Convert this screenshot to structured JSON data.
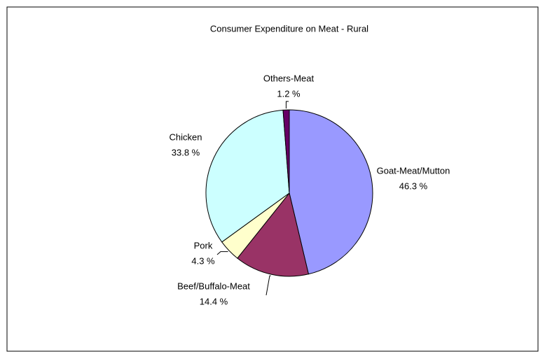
{
  "chart_data": {
    "type": "pie",
    "title": "Consumer Expenditure on Meat - Rural",
    "categories": [
      "Goat-Meat/Mutton",
      "Beef/Buffalo-Meat",
      "Pork",
      "Chicken",
      "Others-Meat"
    ],
    "values": [
      46.3,
      14.4,
      4.3,
      33.8,
      1.2
    ],
    "value_labels": [
      "46.3 %",
      "14.4 %",
      "4.3 %",
      "33.8 %",
      "1.2 %"
    ],
    "colors": [
      "#9999ff",
      "#993366",
      "#ffffcc",
      "#ccffff",
      "#660066"
    ]
  }
}
